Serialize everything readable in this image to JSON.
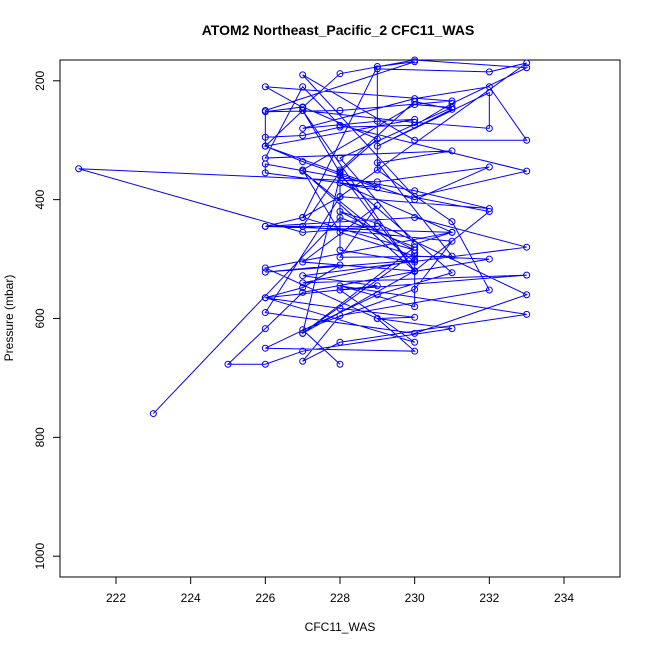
{
  "chart_data": {
    "type": "line",
    "title": "ATOM2 Northeast_Pacific_2 CFC11_WAS",
    "xlabel": "CFC11_WAS",
    "ylabel": "Pressure (mbar)",
    "xlim": [
      220.5,
      235.5
    ],
    "ylim": [
      1035,
      165
    ],
    "y_reversed": true,
    "grid": false,
    "legend": "none",
    "x_ticks": [
      222,
      224,
      226,
      228,
      230,
      232,
      234
    ],
    "x_tick_labels": [
      "222",
      "224",
      "226",
      "228",
      "230",
      "232",
      "234"
    ],
    "y_ticks": [
      200,
      400,
      600,
      800,
      1000
    ],
    "y_tick_labels": [
      "200",
      "400",
      "600",
      "800",
      "1000"
    ],
    "series_color": "#0000ff",
    "series": [
      {
        "markers": "circle",
        "points": [
          [
            228,
            677
          ],
          [
            227,
            619
          ],
          [
            230,
            551
          ],
          [
            231,
            470
          ],
          [
            227,
            445
          ],
          [
            228,
            353
          ],
          [
            229,
            298
          ],
          [
            227,
            244
          ],
          [
            226,
            252
          ],
          [
            228,
            250
          ],
          [
            231,
            234
          ],
          [
            226,
            210
          ],
          [
            227,
            245
          ],
          [
            228,
            188
          ],
          [
            230,
            165
          ],
          [
            233,
            178
          ],
          [
            231,
            238
          ],
          [
            230,
            275
          ],
          [
            228,
            278
          ],
          [
            227,
            292
          ],
          [
            226,
            295
          ],
          [
            226,
            310
          ],
          [
            227,
            336
          ],
          [
            228,
            358
          ],
          [
            229,
            380
          ],
          [
            226,
            355
          ],
          [
            226,
            340
          ],
          [
            230,
            385
          ],
          [
            232,
            415
          ],
          [
            228,
            395
          ],
          [
            227,
            430
          ],
          [
            226,
            445
          ],
          [
            230,
            430
          ],
          [
            233,
            480
          ],
          [
            227,
            528
          ],
          [
            229,
            545
          ],
          [
            226,
            565
          ],
          [
            227,
            548
          ],
          [
            228,
            510
          ],
          [
            226,
            522
          ],
          [
            230,
            502
          ],
          [
            227,
            540
          ],
          [
            233,
            527
          ],
          [
            228,
            552
          ],
          [
            230,
            640
          ],
          [
            226,
            565
          ],
          [
            228,
            583
          ],
          [
            230,
            598
          ],
          [
            229,
            600
          ],
          [
            231,
            617
          ],
          [
            227,
            655
          ],
          [
            226,
            677
          ],
          [
            225,
            677
          ],
          [
            226,
            617
          ],
          [
            227,
            556
          ],
          [
            230,
            521
          ],
          [
            232,
            500
          ],
          [
            230,
            495
          ],
          [
            228,
            455
          ],
          [
            227,
            350
          ],
          [
            230,
            240
          ],
          [
            231,
            245
          ],
          [
            228,
            330
          ],
          [
            230,
            475
          ],
          [
            231,
            455
          ],
          [
            226,
            445
          ],
          [
            229,
            445
          ],
          [
            227,
            455
          ],
          [
            221,
            348
          ],
          [
            229,
            370
          ],
          [
            232,
            345
          ],
          [
            230,
            400
          ],
          [
            226,
            310
          ],
          [
            230,
            265
          ],
          [
            229,
            268
          ],
          [
            227,
            280
          ],
          [
            230,
            230
          ],
          [
            232,
            210
          ],
          [
            233,
            300
          ],
          [
            230,
            300
          ],
          [
            227,
            190
          ],
          [
            230,
            395
          ],
          [
            233,
            352
          ],
          [
            228,
            275
          ],
          [
            227,
            210
          ],
          [
            226,
            330
          ],
          [
            231,
            318
          ],
          [
            229,
            338
          ],
          [
            231,
            495
          ],
          [
            228,
            497
          ],
          [
            229,
            410
          ],
          [
            227,
            505
          ],
          [
            230,
            520
          ],
          [
            232,
            420
          ],
          [
            228,
            372
          ],
          [
            231,
            455
          ],
          [
            226,
            515
          ],
          [
            229,
            600
          ],
          [
            230,
            655
          ],
          [
            226,
            650
          ],
          [
            229,
            560
          ],
          [
            231,
            523
          ],
          [
            228,
            360
          ],
          [
            227,
            625
          ],
          [
            230,
            490
          ],
          [
            230,
            580
          ],
          [
            228,
            545
          ],
          [
            233,
            593
          ],
          [
            228,
            640
          ],
          [
            227,
            672
          ],
          [
            228,
            595
          ],
          [
            232,
            552
          ],
          [
            231,
            437
          ],
          [
            229,
            350
          ],
          [
            229,
            180
          ],
          [
            232,
            185
          ],
          [
            233,
            170
          ],
          [
            228,
            395
          ],
          [
            226,
            590
          ],
          [
            230,
            625
          ],
          [
            233,
            560
          ],
          [
            229,
            440
          ],
          [
            228,
            420
          ],
          [
            230,
            485
          ],
          [
            227,
            430
          ],
          [
            229,
            176
          ],
          [
            230,
            168
          ],
          [
            226,
            250
          ],
          [
            226,
            310
          ],
          [
            227,
            250
          ],
          [
            230,
            520
          ],
          [
            227,
            352
          ],
          [
            230,
            505
          ],
          [
            228,
            485
          ],
          [
            228,
            350
          ],
          [
            230,
            235
          ],
          [
            231,
            248
          ],
          [
            229,
            310
          ],
          [
            232,
            220
          ],
          [
            232,
            280
          ],
          [
            230,
            270
          ],
          [
            227,
            250
          ],
          [
            228,
            355
          ],
          [
            230,
            520
          ],
          [
            227,
            625
          ],
          [
            230,
            480
          ],
          [
            228,
            430
          ],
          [
            223,
            760
          ]
        ]
      }
    ]
  }
}
